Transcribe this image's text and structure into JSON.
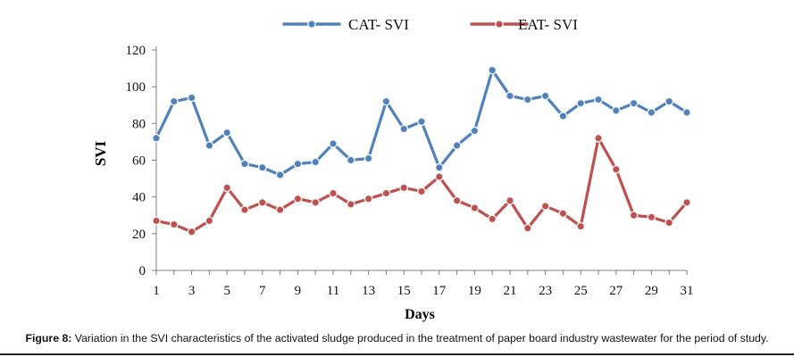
{
  "chart_data": {
    "type": "line",
    "title": "",
    "xlabel": "Days",
    "ylabel": "SVI",
    "ylim": [
      0,
      120
    ],
    "yticks": [
      0,
      20,
      40,
      60,
      80,
      100,
      120
    ],
    "xticks": [
      1,
      3,
      5,
      7,
      9,
      11,
      13,
      15,
      17,
      19,
      21,
      23,
      25,
      27,
      29,
      31
    ],
    "x": [
      1,
      2,
      3,
      4,
      5,
      6,
      7,
      8,
      9,
      10,
      11,
      12,
      13,
      14,
      15,
      16,
      17,
      18,
      19,
      20,
      21,
      22,
      23,
      24,
      25,
      26,
      27,
      28,
      29,
      30,
      31
    ],
    "legend_position": "top",
    "series": [
      {
        "name": "CAT- SVI",
        "color": "#4f81bd",
        "values": [
          72,
          92,
          94,
          68,
          75,
          58,
          56,
          52,
          58,
          59,
          69,
          60,
          61,
          92,
          77,
          81,
          56,
          68,
          76,
          109,
          95,
          93,
          95,
          84,
          91,
          93,
          87,
          91,
          86,
          92,
          86
        ]
      },
      {
        "name": "EAT- SVI",
        "color": "#c0504d",
        "values": [
          27,
          25,
          21,
          27,
          45,
          33,
          37,
          33,
          39,
          37,
          42,
          36,
          39,
          42,
          45,
          43,
          51,
          38,
          34,
          28,
          38,
          23,
          35,
          31,
          24,
          72,
          55,
          30,
          29,
          26,
          37
        ]
      }
    ]
  },
  "caption": {
    "label": "Figure 8:",
    "text": " Variation in the SVI characteristics of the activated sludge produced in the treatment of paper board industry wastewater for the period of study."
  }
}
